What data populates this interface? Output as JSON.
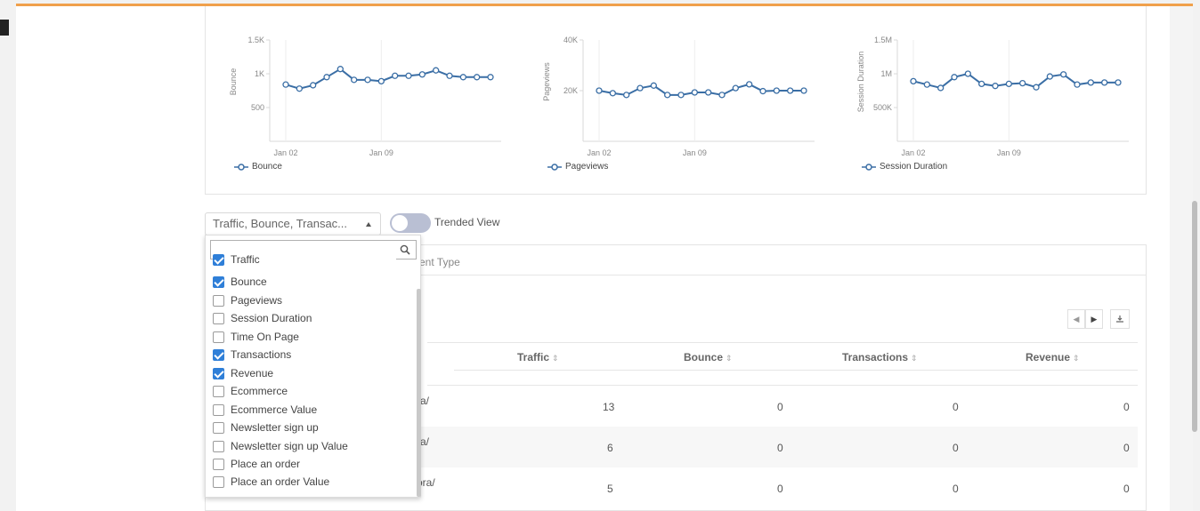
{
  "charts": [
    {
      "ylabel": "Bounce",
      "yticks": [
        "1.5K",
        "1K",
        "500"
      ],
      "ytick_values": [
        1500,
        1000,
        500
      ],
      "xticks": [
        "Jan 02",
        "Jan 09"
      ],
      "legend": "Bounce",
      "line_color": "#3a6ea5"
    },
    {
      "ylabel": "Pageviews",
      "yticks": [
        "40K",
        "20K"
      ],
      "ytick_values": [
        40000,
        20000
      ],
      "xticks": [
        "Jan 02",
        "Jan 09"
      ],
      "legend": "Pageviews",
      "line_color": "#3a6ea5"
    },
    {
      "ylabel": "Session Duration",
      "yticks": [
        "1.5M",
        "1M",
        "500K"
      ],
      "ytick_values": [
        1500000,
        1000000,
        500000
      ],
      "xticks": [
        "Jan 02",
        "Jan 09"
      ],
      "legend": "Session Duration",
      "line_color": "#3a6ea5"
    }
  ],
  "chart_data": [
    {
      "type": "line",
      "x": [
        "Jan 02",
        "Jan 03",
        "Jan 04",
        "Jan 05",
        "Jan 06",
        "Jan 07",
        "Jan 08",
        "Jan 09",
        "Jan 10",
        "Jan 11",
        "Jan 12",
        "Jan 13",
        "Jan 14",
        "Jan 15",
        "Jan 16",
        "Jan 17"
      ],
      "series": [
        {
          "name": "Bounce",
          "values": [
            840,
            780,
            830,
            950,
            1070,
            910,
            910,
            890,
            970,
            970,
            990,
            1050,
            970,
            950,
            950,
            950
          ]
        }
      ],
      "ylim": [
        0,
        1500
      ],
      "ylabel": "Bounce",
      "grid": true,
      "legend": "bottom-left"
    },
    {
      "type": "line",
      "x": [
        "Jan 02",
        "Jan 03",
        "Jan 04",
        "Jan 05",
        "Jan 06",
        "Jan 07",
        "Jan 08",
        "Jan 09",
        "Jan 10",
        "Jan 11",
        "Jan 12",
        "Jan 13",
        "Jan 14",
        "Jan 15",
        "Jan 16",
        "Jan 17"
      ],
      "series": [
        {
          "name": "Pageviews",
          "values": [
            20000,
            19000,
            18300,
            21000,
            22000,
            18300,
            18300,
            19300,
            19300,
            18300,
            21000,
            22500,
            19800,
            20000,
            20000,
            20000
          ]
        }
      ],
      "ylim": [
        0,
        40000
      ],
      "ylabel": "Pageviews",
      "grid": true,
      "legend": "bottom-left"
    },
    {
      "type": "line",
      "x": [
        "Jan 02",
        "Jan 03",
        "Jan 04",
        "Jan 05",
        "Jan 06",
        "Jan 07",
        "Jan 08",
        "Jan 09",
        "Jan 10",
        "Jan 11",
        "Jan 12",
        "Jan 13",
        "Jan 14",
        "Jan 15",
        "Jan 16",
        "Jan 17"
      ],
      "series": [
        {
          "name": "Session Duration",
          "values": [
            890000,
            840000,
            790000,
            950000,
            1000000,
            850000,
            820000,
            850000,
            860000,
            800000,
            960000,
            990000,
            840000,
            870000,
            870000,
            870000
          ]
        }
      ],
      "ylim": [
        0,
        1500000
      ],
      "ylabel": "Session Duration",
      "grid": true,
      "legend": "bottom-left"
    }
  ],
  "controls": {
    "metric_select": "Traffic, Bounce, Transac...",
    "toggle_label": "Trended View"
  },
  "dropdown": {
    "search_placeholder": "",
    "items": [
      {
        "label": "Traffic",
        "checked": true
      },
      {
        "label": "Bounce",
        "checked": true
      },
      {
        "label": "Pageviews",
        "checked": false
      },
      {
        "label": "Session Duration",
        "checked": false
      },
      {
        "label": "Time On Page",
        "checked": false
      },
      {
        "label": "Transactions",
        "checked": true
      },
      {
        "label": "Revenue",
        "checked": true
      },
      {
        "label": "Ecommerce",
        "checked": false
      },
      {
        "label": "Ecommerce Value",
        "checked": false
      },
      {
        "label": "Newsletter sign up",
        "checked": false
      },
      {
        "label": "Newsletter sign up Value",
        "checked": false
      },
      {
        "label": "Place an order",
        "checked": false
      },
      {
        "label": "Place an order Value",
        "checked": false
      }
    ]
  },
  "table": {
    "tab_partial": "ent Type",
    "headers": [
      "Traffic",
      "Bounce",
      "Transactions",
      "Revenue"
    ],
    "rows": [
      {
        "label": "a/",
        "traffic": "13",
        "bounce": "0",
        "transactions": "0",
        "revenue": "0"
      },
      {
        "label": "a/",
        "traffic": "6",
        "bounce": "0",
        "transactions": "0",
        "revenue": "0"
      },
      {
        "label": "ora/",
        "traffic": "5",
        "bounce": "0",
        "transactions": "0",
        "revenue": "0"
      }
    ]
  },
  "colors": {
    "accent": "#f0a04b",
    "checkbox": "#2f7fd8",
    "line": "#3a6ea5"
  }
}
